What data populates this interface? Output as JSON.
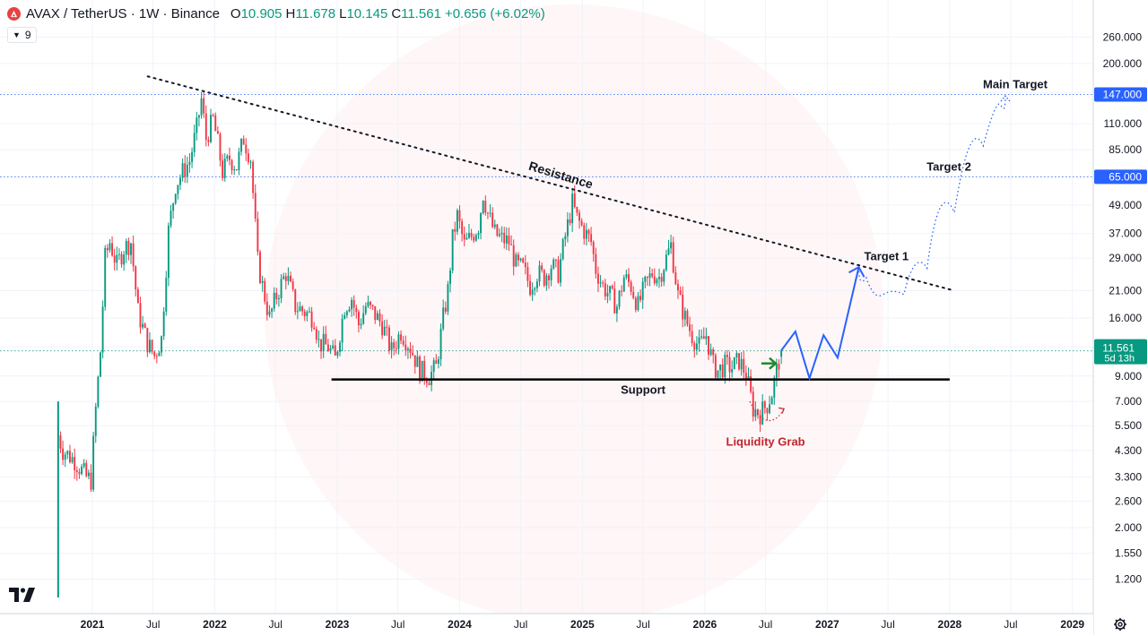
{
  "header": {
    "symbol": "AVAX / TetherUS · 1W · Binance",
    "o_label": "O",
    "o_value": "10.905",
    "h_label": "H",
    "h_value": "11.678",
    "l_label": "L",
    "l_value": "10.145",
    "c_label": "C",
    "c_value": "11.561",
    "change": "+0.656 (+6.02%)"
  },
  "indicator_toggle": {
    "count": "9"
  },
  "colors": {
    "up": "#089981",
    "down": "#f23645",
    "trend": "#2962ff",
    "liquidity": "#c0262d",
    "annotation": "#131722",
    "logo": "#e84142"
  },
  "icons": [
    "avax-logo-icon",
    "chevron-down-icon",
    "tradingview-logo-icon",
    "gear-icon"
  ],
  "chart_data": {
    "type": "candlestick",
    "title": "AVAX / TetherUS · 1W · Binance",
    "y_scale": "log",
    "ylim": [
      1.0,
      320.0
    ],
    "y_ticks": [
      "260.000",
      "200.000",
      "150.000",
      "110.000",
      "85.000",
      "65.000",
      "49.000",
      "37.000",
      "29.000",
      "21.000",
      "16.000",
      "12.000",
      "9.000",
      "7.000",
      "5.500",
      "4.300",
      "3.300",
      "2.600",
      "2.000",
      "1.550",
      "1.200"
    ],
    "x_ticks": [
      "2021",
      "Jul",
      "2022",
      "Jul",
      "2023",
      "Jul",
      "2024",
      "Jul",
      "2025",
      "Jul",
      "2026",
      "Jul",
      "2027",
      "Jul",
      "2028",
      "Jul",
      "2029"
    ],
    "x_range": [
      "2020-09",
      "2029-05"
    ],
    "last_price": "11.561",
    "countdown": "5d 13h",
    "price_tags": [
      "147.000",
      "65.000"
    ],
    "close_path": [
      [
        "2020-09-21",
        5.0
      ],
      [
        "2020-10-05",
        4.3
      ],
      [
        "2020-11-09",
        3.9
      ],
      [
        "2020-12-14",
        3.3
      ],
      [
        "2020-12-28",
        3.2
      ],
      [
        "2021-01-11",
        6.5
      ],
      [
        "2021-01-25",
        11.5
      ],
      [
        "2021-02-08",
        29.0
      ],
      [
        "2021-02-22",
        34.0
      ],
      [
        "2021-03-15",
        27.0
      ],
      [
        "2021-04-05",
        32.0
      ],
      [
        "2021-04-26",
        34.0
      ],
      [
        "2021-05-17",
        17.0
      ],
      [
        "2021-06-14",
        12.5
      ],
      [
        "2021-07-05",
        11.0
      ],
      [
        "2021-07-26",
        13.0
      ],
      [
        "2021-08-16",
        38.0
      ],
      [
        "2021-09-06",
        60.0
      ],
      [
        "2021-09-27",
        68.0
      ],
      [
        "2021-10-18",
        76.0
      ],
      [
        "2021-11-08",
        105.0
      ],
      [
        "2021-11-22",
        140.0
      ],
      [
        "2021-12-06",
        95.0
      ],
      [
        "2021-12-27",
        115.0
      ],
      [
        "2022-01-10",
        90.0
      ],
      [
        "2022-01-24",
        68.0
      ],
      [
        "2022-02-14",
        78.0
      ],
      [
        "2022-03-07",
        72.0
      ],
      [
        "2022-03-28",
        95.0
      ],
      [
        "2022-04-18",
        78.0
      ],
      [
        "2022-05-09",
        28.0
      ],
      [
        "2022-05-23",
        22.0
      ],
      [
        "2022-06-13",
        16.0
      ],
      [
        "2022-07-04",
        20.0
      ],
      [
        "2022-08-01",
        25.0
      ],
      [
        "2022-08-29",
        18.0
      ],
      [
        "2022-09-26",
        17.0
      ],
      [
        "2022-10-24",
        16.0
      ],
      [
        "2022-11-07",
        12.5
      ],
      [
        "2022-12-05",
        12.0
      ],
      [
        "2022-12-26",
        10.6
      ],
      [
        "2023-01-23",
        18.0
      ],
      [
        "2023-02-13",
        19.5
      ],
      [
        "2023-03-06",
        15.0
      ],
      [
        "2023-03-27",
        18.0
      ],
      [
        "2023-04-17",
        17.0
      ],
      [
        "2023-05-15",
        15.0
      ],
      [
        "2023-06-12",
        11.5
      ],
      [
        "2023-07-10",
        14.0
      ],
      [
        "2023-08-07",
        12.0
      ],
      [
        "2023-09-04",
        9.5
      ],
      [
        "2023-10-02",
        9.0
      ],
      [
        "2023-10-23",
        9.8
      ],
      [
        "2023-11-13",
        16.0
      ],
      [
        "2023-11-27",
        21.0
      ],
      [
        "2023-12-11",
        35.0
      ],
      [
        "2023-12-25",
        44.0
      ],
      [
        "2024-01-15",
        33.0
      ],
      [
        "2024-02-05",
        36.0
      ],
      [
        "2024-02-26",
        40.0
      ],
      [
        "2024-03-11",
        55.0
      ],
      [
        "2024-03-25",
        45.0
      ],
      [
        "2024-04-15",
        37.0
      ],
      [
        "2024-05-06",
        35.0
      ],
      [
        "2024-05-27",
        34.0
      ],
      [
        "2024-06-17",
        27.0
      ],
      [
        "2024-07-08",
        26.0
      ],
      [
        "2024-07-29",
        22.0
      ],
      [
        "2024-08-19",
        25.0
      ],
      [
        "2024-09-09",
        24.0
      ],
      [
        "2024-09-30",
        27.0
      ],
      [
        "2024-10-21",
        25.0
      ],
      [
        "2024-11-11",
        36.0
      ],
      [
        "2024-12-02",
        50.0
      ],
      [
        "2024-12-16",
        43.0
      ],
      [
        "2025-01-06",
        38.0
      ],
      [
        "2025-01-27",
        34.0
      ],
      [
        "2025-02-10",
        26.0
      ],
      [
        "2025-03-03",
        22.0
      ],
      [
        "2025-03-24",
        20.0
      ],
      [
        "2025-04-14",
        18.0
      ],
      [
        "2025-05-05",
        24.0
      ],
      [
        "2025-05-26",
        22.0
      ],
      [
        "2025-06-16",
        18.0
      ],
      [
        "2025-07-07",
        22.0
      ],
      [
        "2025-07-28",
        25.0
      ],
      [
        "2025-08-18",
        24.0
      ],
      [
        "2025-09-08",
        29.0
      ],
      [
        "2025-09-22",
        33.0
      ],
      [
        "2025-10-13",
        20.0
      ],
      [
        "2025-11-03",
        16.0
      ],
      [
        "2025-11-24",
        13.5
      ],
      [
        "2025-12-15",
        12.0
      ],
      [
        "2026-01-05",
        13.5
      ],
      [
        "2026-01-26",
        10.0
      ],
      [
        "2026-02-09",
        9.5
      ],
      [
        "2026-03-02",
        10.0
      ],
      [
        "2026-03-23",
        9.8
      ],
      [
        "2026-04-13",
        10.5
      ],
      [
        "2026-05-04",
        9.2
      ],
      [
        "2026-05-25",
        6.5
      ],
      [
        "2026-06-15",
        6.2
      ],
      [
        "2026-07-06",
        6.8
      ],
      [
        "2026-07-20",
        7.6
      ],
      [
        "2026-08-03",
        9.5
      ],
      [
        "2026-08-17",
        11.561
      ]
    ],
    "support_level": 8.7,
    "support_range": [
      "2022-12-15",
      "2028-01-01"
    ],
    "resistance_points": [
      [
        "2021-06-15",
        176.0
      ],
      [
        "2028-01-15",
        21.0
      ]
    ],
    "projection_path": [
      [
        "2026-08-17",
        11.6
      ],
      [
        "2026-09-28",
        14.0
      ],
      [
        "2026-11-09",
        8.8
      ],
      [
        "2026-12-21",
        13.5
      ],
      [
        "2027-02-01",
        10.8
      ],
      [
        "2027-04-05",
        26.5
      ]
    ],
    "dotted_projection_path": [
      [
        "2027-04-05",
        26.5
      ],
      [
        "2027-05-20",
        21.5
      ],
      [
        "2027-07-15",
        19.0
      ],
      [
        "2027-09-20",
        21.5
      ],
      [
        "2027-11-30",
        32.0
      ],
      [
        "2028-03-01",
        65.0
      ],
      [
        "2028-05-20",
        120.0
      ],
      [
        "2028-06-15",
        145.0
      ]
    ],
    "liquidity_arc": [
      [
        "2026-05-15",
        7.0
      ],
      [
        "2026-06-20",
        5.4
      ],
      [
        "2026-08-01",
        5.6
      ],
      [
        "2026-08-25",
        6.5
      ]
    ],
    "target_lines": [
      147.0,
      65.0
    ],
    "annotations": {
      "resistance": "Resistance",
      "support": "Support",
      "target1": "Target 1",
      "target2": "Target 2",
      "main_target": "Main Target",
      "liquidity_grab": "Liquidity Grab"
    },
    "grid": true,
    "legend": "none"
  }
}
